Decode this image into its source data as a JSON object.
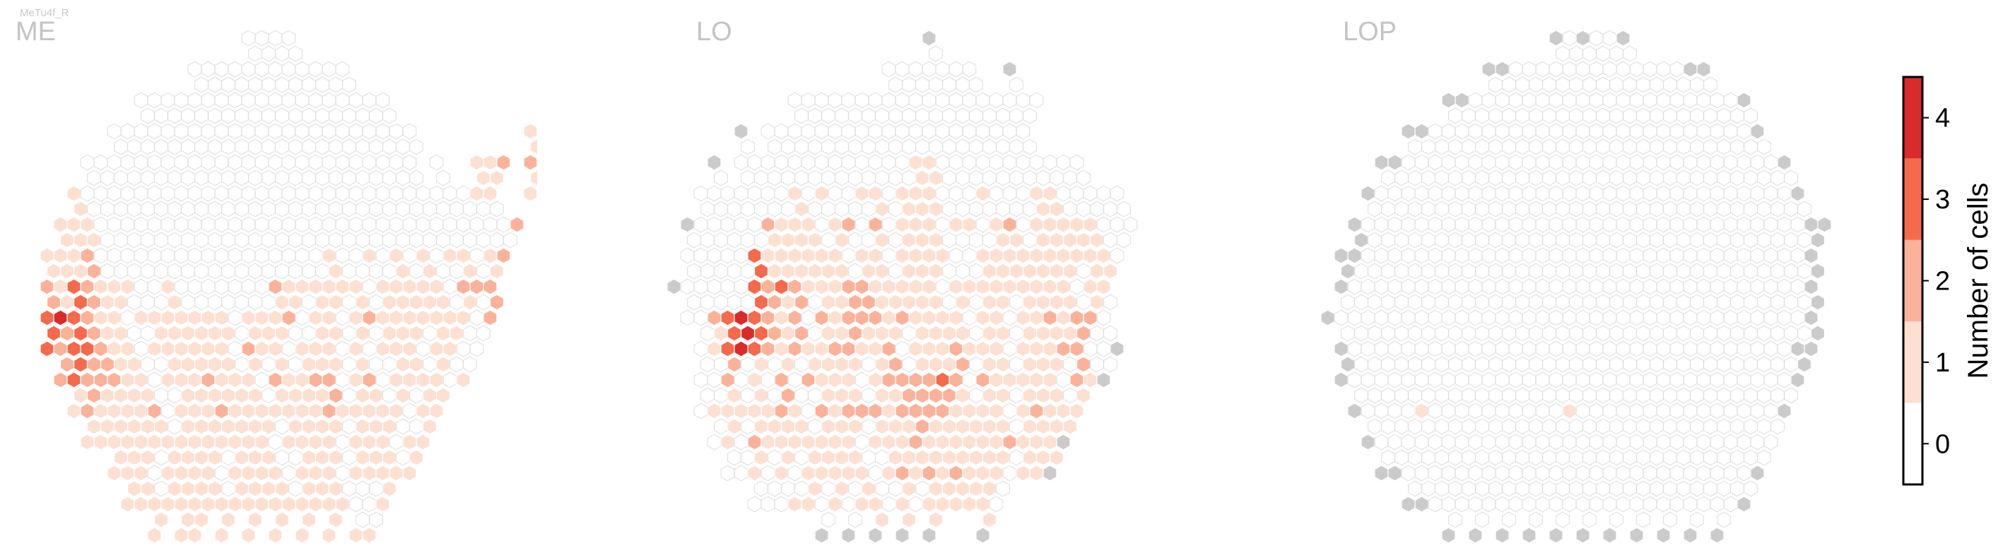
{
  "cell_type": "MeTu4f_R",
  "chart_data": [
    {
      "type": "heatmap",
      "plot": "hexagonal column map",
      "title": "ME",
      "value_description": "Number of cells per column",
      "color_scale": "Reds",
      "rows": [
        "                  ....                  ",
        "              ............              ",
        "          ...................           ",
        "        .......................        1",
        "      ......................... .  112 2",
        "     1.............................11  1",
        "    111...............................2 ",
        "   1112.................1..1.1.1.11.12  ",
        "   2132111..1.......2111111.11111.222   ",
        "   343211.1111111.1112.11.121111111.2   ",
        "   3233211.111111.211.111.1.111.11..    ",
        "    2322211.1112111.21122.12.1111.1     ",
        "     1211112.11121111111211111.11       ",
        "      11111111111111.1111.111.11        ",
        "        111.1111.1111.111.11111         ",
        "         11111111111111111..1           ",
        "           1 11 1 1 1 1 1 11            "
      ],
      "colors": {
        "1": "#fde0d2",
        "2": "#fbb29a",
        "3": "#f5694d",
        "4": "#d92b2b"
      }
    },
    {
      "type": "heatmap",
      "plot": "hexagonal column map",
      "title": "LO",
      "value_description": "Number of cells per column",
      "color_scale": "Reds",
      "rows": [
        "                    x                   ",
        "                 .......  x             ",
        "          ...................           ",
        "      x ....................            ",
        "    x .............11...........        ",
        "   .......1.1..11.111...1...11.....     ",
        "  x.....2111.12.2.111.11.12.11111...    ",
        "  .....3111111.11.1111..1111111111.     ",
        " x.....32321112211111.111111111.11      ",
        "  ..2343212.21222121111.11.112122.      ",
        "   .13432121122112.1112111.11122..x     ",
        "   ..2.1.2.2111.1222232.211111.21x      ",
        "   .1111121.21222122221111.12111        ",
        "    .1.21111111.11121111112111x         ",
        "     ..1.1.11111.121212111.11x          ",
        "       ...11.1.11.1.11111.              ",
        "            x x x x x   x               "
      ],
      "colors": {
        "1": "#fde0d2",
        "2": "#fbb29a",
        "3": "#f5694d",
        "4": "#d92b2b",
        "x": "#cbcbcb"
      }
    },
    {
      "type": "heatmap",
      "plot": "hexagonal column map",
      "title": "LOP",
      "value_description": "Number of cells per column",
      "color_scale": "Reds",
      "rows": [
        "                  x.x..x                ",
        "             xx.............xx          ",
        "          xx....................x       ",
        "       xx........................x      ",
        "     xx............................x    ",
        "    x...............................x   ",
        "   x.................................xx ",
        "  xx.................................x  ",
        "  x..................................x  ",
        " x...................................x  ",
        "  x.................................xx  ",
        "  x.................................x   ",
        "   x....1..........1...............x    ",
        "    x..............................     ",
        "     xx..........................x      ",
        "       xx.......................x       ",
        "          x x x x x x x x x x x         "
      ],
      "colors": {
        "1": "#fde0d2",
        "x": "#cbcbcb"
      }
    }
  ],
  "colorbar": {
    "label": "Number of cells",
    "ticks": [
      "0",
      "1",
      "2",
      "3",
      "4"
    ],
    "values": [
      0,
      1,
      2,
      3,
      4
    ],
    "colors": [
      "#ffffff",
      "#fde0d2",
      "#fbb29a",
      "#f5694d",
      "#d92b2b"
    ]
  },
  "style": {
    "empty_column_stroke": "#dcdcdc",
    "filled_column_stroke": "#ffffff",
    "outside_column_fill": "#cbcbcb"
  }
}
